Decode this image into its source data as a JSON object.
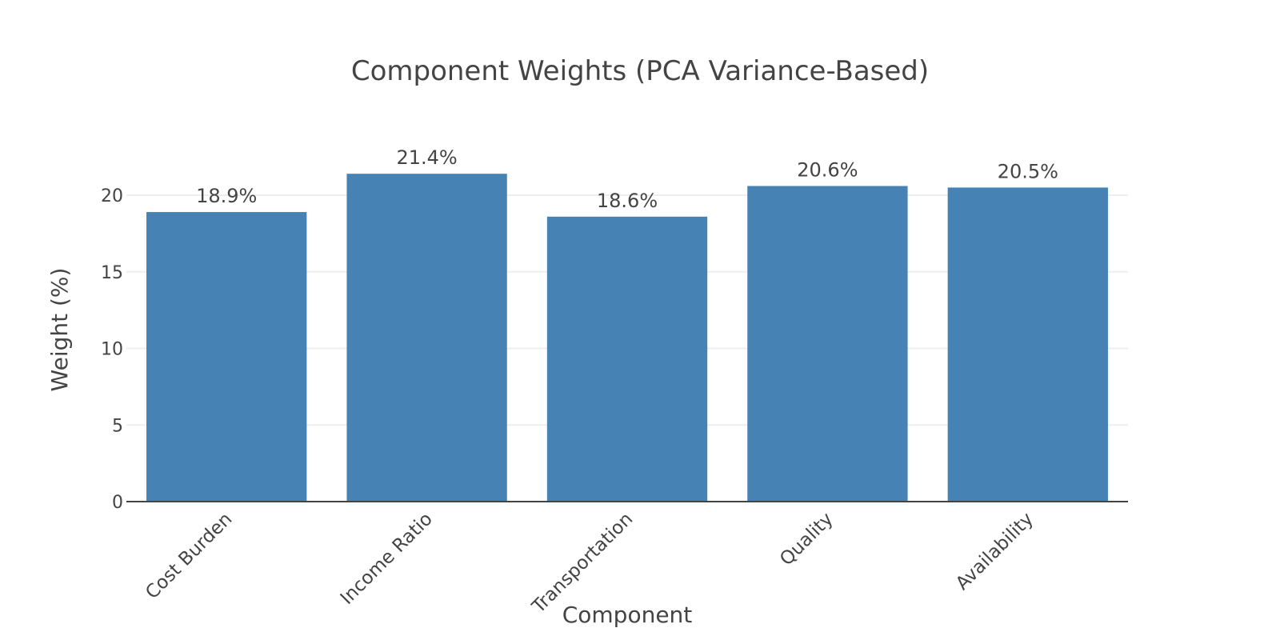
{
  "chart_data": {
    "type": "bar",
    "title": "Component Weights (PCA Variance-Based)",
    "xlabel": "Component",
    "ylabel": "Weight (%)",
    "categories": [
      "Cost Burden",
      "Income Ratio",
      "Transportation",
      "Quality",
      "Availability"
    ],
    "values": [
      18.9,
      21.4,
      18.6,
      20.6,
      20.5
    ],
    "data_labels": [
      "18.9%",
      "21.4%",
      "18.6%",
      "20.6%",
      "20.5%"
    ],
    "ylim": [
      0,
      20
    ],
    "yticks": [
      0,
      5,
      10,
      15,
      20
    ],
    "grid": true,
    "bar_color": "#4682b4"
  }
}
